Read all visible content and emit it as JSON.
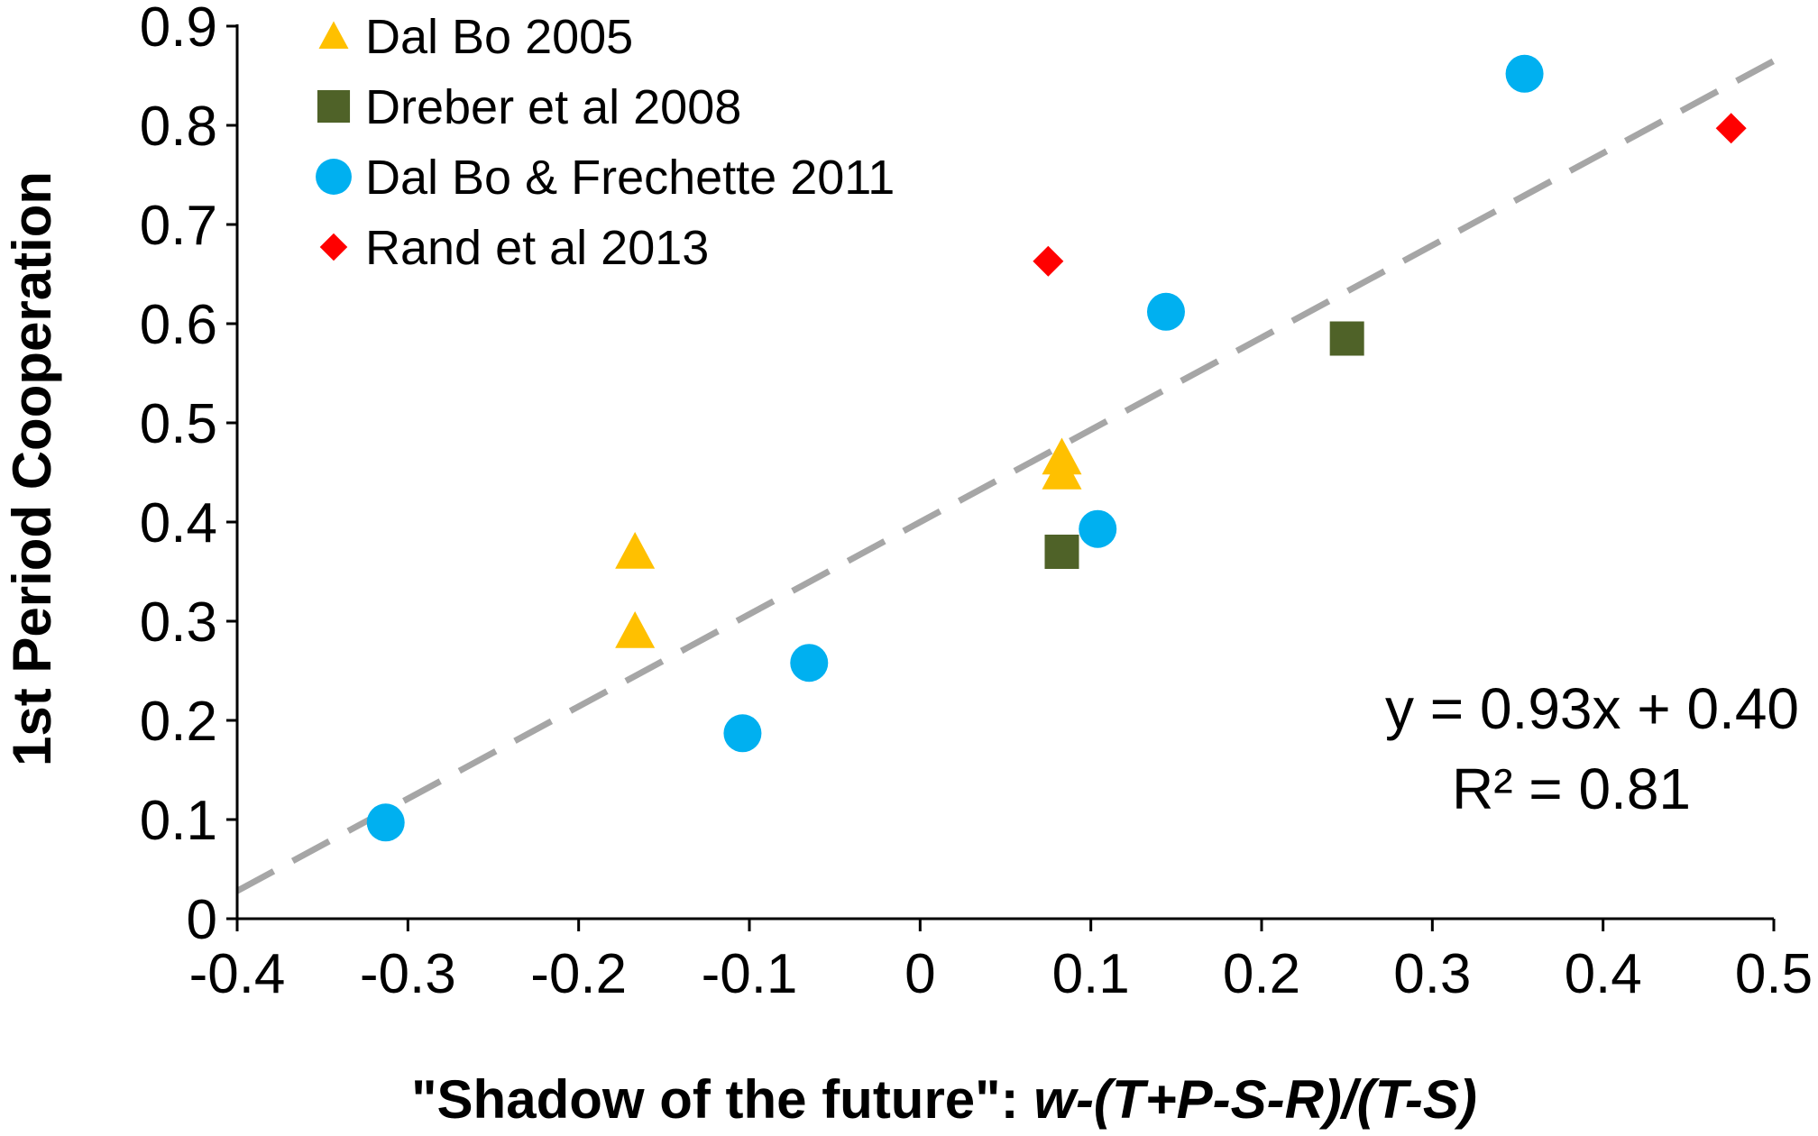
{
  "chart_data": {
    "type": "scatter",
    "xlabel": {
      "plain": "\"Shadow of the future\": ",
      "italic": "w-(T+P-S-R)/(T-S)"
    },
    "ylabel": "1st Period Cooperation",
    "xlim": [
      -0.4,
      0.5
    ],
    "ylim": [
      0,
      0.9
    ],
    "xticks": [
      "-0.4",
      "-0.3",
      "-0.2",
      "-0.1",
      "0",
      "0.1",
      "0.2",
      "0.3",
      "0.4",
      "0.5"
    ],
    "yticks": [
      "0",
      "0.1",
      "0.2",
      "0.3",
      "0.4",
      "0.5",
      "0.6",
      "0.7",
      "0.8",
      "0.9"
    ],
    "legend_position": "top-left",
    "series": [
      {
        "name": "Dal Bo 2005",
        "marker": "triangle",
        "color": "#FFC000",
        "points": [
          {
            "x": -0.167,
            "y": 0.37
          },
          {
            "x": -0.167,
            "y": 0.29
          },
          {
            "x": 0.083,
            "y": 0.465
          },
          {
            "x": 0.083,
            "y": 0.45
          }
        ]
      },
      {
        "name": "Dreber et al 2008",
        "marker": "square",
        "color": "#4F6228",
        "points": [
          {
            "x": 0.083,
            "y": 0.37
          },
          {
            "x": 0.25,
            "y": 0.585
          }
        ]
      },
      {
        "name": "Dal Bo & Frechette 2011",
        "marker": "circle",
        "color": "#00B0F0",
        "points": [
          {
            "x": -0.313,
            "y": 0.097
          },
          {
            "x": -0.104,
            "y": 0.187
          },
          {
            "x": -0.065,
            "y": 0.258
          },
          {
            "x": 0.104,
            "y": 0.393
          },
          {
            "x": 0.144,
            "y": 0.612
          },
          {
            "x": 0.354,
            "y": 0.852
          }
        ]
      },
      {
        "name": "Rand et al 2013",
        "marker": "diamond",
        "color": "#FF0000",
        "points": [
          {
            "x": 0.075,
            "y": 0.663
          },
          {
            "x": 0.475,
            "y": 0.797
          }
        ]
      }
    ],
    "trendline": {
      "slope": 0.93,
      "intercept": 0.4,
      "x_range": [
        -0.4,
        0.5
      ],
      "style": "dashed",
      "color": "#A6A6A6"
    },
    "annotation": {
      "equation": "y = 0.93x + 0.40",
      "r_squared": "R² = 0.81"
    }
  }
}
